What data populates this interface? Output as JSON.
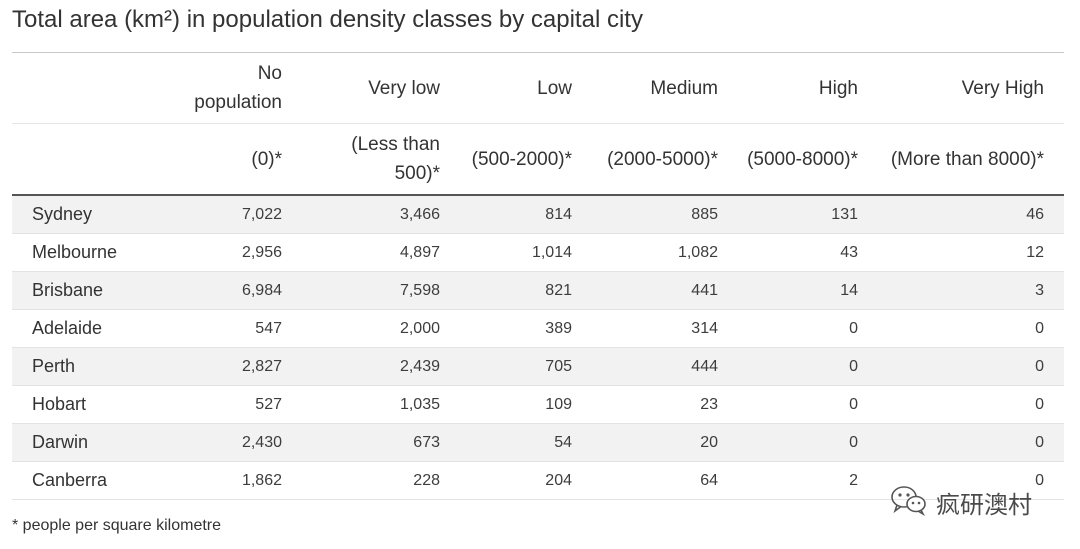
{
  "title": "Total area (km²) in population density classes by capital city",
  "chart_data": {
    "type": "table",
    "title": "Total area (km²) in population density classes by capital city",
    "columns": [
      {
        "name": "No population",
        "range": "(0)*"
      },
      {
        "name": "Very low",
        "range": "(Less than 500)*"
      },
      {
        "name": "Low",
        "range": "(500-2000)*"
      },
      {
        "name": "Medium",
        "range": "(2000-5000)*"
      },
      {
        "name": "High",
        "range": "(5000-8000)*"
      },
      {
        "name": "Very High",
        "range": "(More than 8000)*"
      }
    ],
    "rows": [
      {
        "city": "Sydney",
        "values": [
          "7,022",
          "3,466",
          "814",
          "885",
          "131",
          "46"
        ]
      },
      {
        "city": "Melbourne",
        "values": [
          "2,956",
          "4,897",
          "1,014",
          "1,082",
          "43",
          "12"
        ]
      },
      {
        "city": "Brisbane",
        "values": [
          "6,984",
          "7,598",
          "821",
          "441",
          "14",
          "3"
        ]
      },
      {
        "city": "Adelaide",
        "values": [
          "547",
          "2,000",
          "389",
          "314",
          "0",
          "0"
        ]
      },
      {
        "city": "Perth",
        "values": [
          "2,827",
          "2,439",
          "705",
          "444",
          "0",
          "0"
        ]
      },
      {
        "city": "Hobart",
        "values": [
          "527",
          "1,035",
          "109",
          "23",
          "0",
          "0"
        ]
      },
      {
        "city": "Darwin",
        "values": [
          "2,430",
          "673",
          "54",
          "20",
          "0",
          "0"
        ]
      },
      {
        "city": "Canberra",
        "values": [
          "1,862",
          "228",
          "204",
          "64",
          "2",
          "0"
        ]
      }
    ]
  },
  "footnote": "* people per square kilometre",
  "watermark": {
    "text": "疯研澳村",
    "icon": "wechat-icon"
  }
}
